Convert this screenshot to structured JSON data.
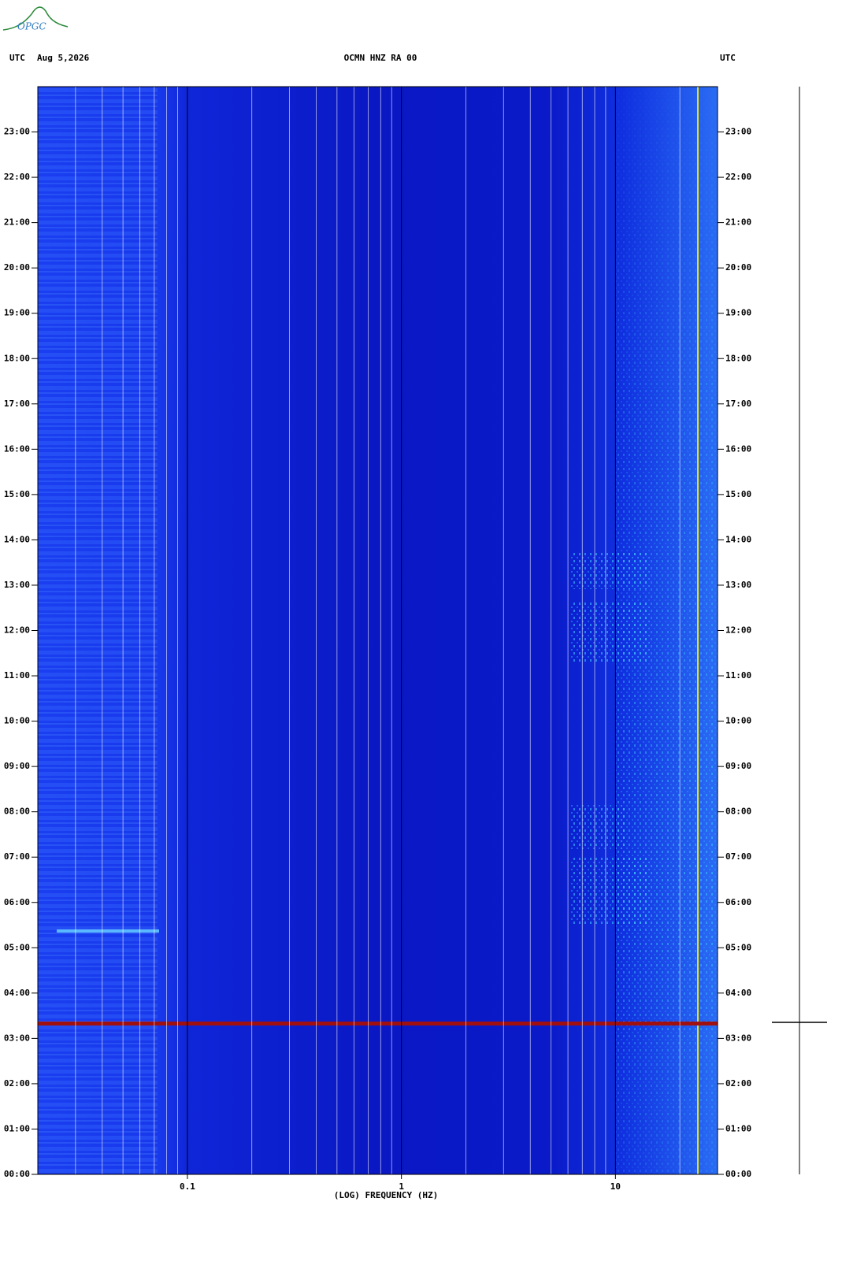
{
  "chart_data": {
    "type": "spectrogram",
    "logo": "OPGC",
    "left_label": "UTC",
    "date": "Aug 5,2026",
    "title": "OCMN HNZ RA 00",
    "right_label": "UTC",
    "xlabel": "(LOG) FREQUENCY (HZ)",
    "xscale": "log",
    "xlim": [
      0.02,
      30
    ],
    "xticks": [
      0.1,
      1,
      10
    ],
    "xminorticks": [
      0.03,
      0.04,
      0.05,
      0.06,
      0.07,
      0.08,
      0.09,
      0.2,
      0.3,
      0.4,
      0.5,
      0.6,
      0.7,
      0.8,
      0.9,
      2,
      3,
      4,
      5,
      6,
      7,
      8,
      9,
      20
    ],
    "ylim": [
      0,
      24
    ],
    "yticks": [
      {
        "value": 0,
        "label": "00:00"
      },
      {
        "value": 1,
        "label": "01:00"
      },
      {
        "value": 2,
        "label": "02:00"
      },
      {
        "value": 3,
        "label": "03:00"
      },
      {
        "value": 4,
        "label": "04:00"
      },
      {
        "value": 5,
        "label": "05:00"
      },
      {
        "value": 6,
        "label": "06:00"
      },
      {
        "value": 7,
        "label": "07:00"
      },
      {
        "value": 8,
        "label": "08:00"
      },
      {
        "value": 9,
        "label": "09:00"
      },
      {
        "value": 10,
        "label": "10:00"
      },
      {
        "value": 11,
        "label": "11:00"
      },
      {
        "value": 12,
        "label": "12:00"
      },
      {
        "value": 13,
        "label": "13:00"
      },
      {
        "value": 14,
        "label": "14:00"
      },
      {
        "value": 15,
        "label": "15:00"
      },
      {
        "value": 16,
        "label": "16:00"
      },
      {
        "value": 17,
        "label": "17:00"
      },
      {
        "value": 18,
        "label": "18:00"
      },
      {
        "value": 19,
        "label": "19:00"
      },
      {
        "value": 20,
        "label": "20:00"
      },
      {
        "value": 21,
        "label": "21:00"
      },
      {
        "value": 22,
        "label": "22:00"
      },
      {
        "value": 23,
        "label": "23:00"
      }
    ]
  }
}
